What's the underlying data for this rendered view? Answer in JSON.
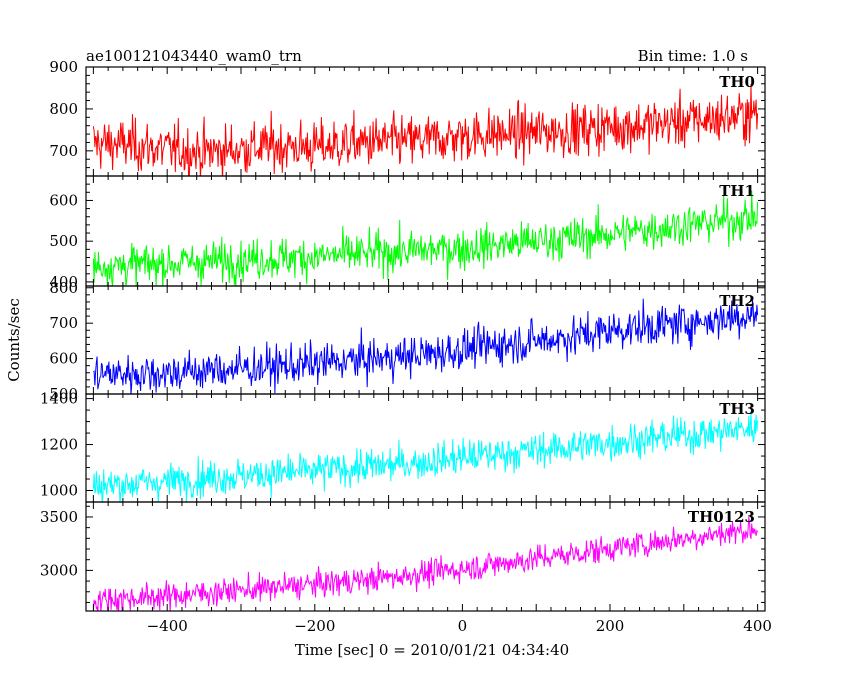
{
  "chart_data": {
    "type": "line",
    "title": "ae100121043440_wam0_trn",
    "subtitle": "Bin time: 1.0 s",
    "xlabel": "Time [sec] 0 = 2010/01/21 04:34:40",
    "ylabel": "Counts/sec",
    "xlim": [
      -510,
      410
    ],
    "xticks": [
      "-400",
      "-200",
      "0",
      "200",
      "400"
    ],
    "grid": false,
    "panels": [
      {
        "name": "TH0",
        "color": "#ff0000",
        "ylim": [
          640,
          900
        ],
        "yticks": [
          "700",
          "800",
          "900"
        ],
        "x": [
          -500,
          -450,
          -400,
          -350,
          -300,
          -250,
          -200,
          -150,
          -100,
          -50,
          0,
          50,
          100,
          150,
          200,
          250,
          300,
          350,
          400
        ],
        "y": [
          718,
          714,
          703,
          697,
          705,
          712,
          708,
          718,
          722,
          725,
          735,
          740,
          745,
          750,
          758,
          762,
          770,
          778,
          790
        ]
      },
      {
        "name": "TH1",
        "color": "#00ff00",
        "ylim": [
          390,
          660
        ],
        "yticks": [
          "400",
          "500",
          "600"
        ],
        "x": [
          -500,
          -450,
          -400,
          -350,
          -300,
          -250,
          -200,
          -150,
          -100,
          -50,
          0,
          50,
          100,
          150,
          200,
          250,
          300,
          350,
          400
        ],
        "y": [
          438,
          442,
          445,
          450,
          455,
          458,
          462,
          468,
          472,
          478,
          482,
          492,
          500,
          508,
          518,
          528,
          540,
          548,
          560
        ]
      },
      {
        "name": "TH2",
        "color": "#0000ff",
        "ylim": [
          500,
          805
        ],
        "yticks": [
          "500",
          "600",
          "700",
          "800"
        ],
        "x": [
          -500,
          -450,
          -400,
          -350,
          -300,
          -250,
          -200,
          -150,
          -100,
          -50,
          0,
          50,
          100,
          150,
          200,
          250,
          300,
          350,
          400
        ],
        "y": [
          555,
          558,
          560,
          565,
          572,
          578,
          585,
          595,
          602,
          612,
          625,
          640,
          650,
          662,
          680,
          690,
          700,
          712,
          728
        ]
      },
      {
        "name": "TH3",
        "color": "#00ffff",
        "ylim": [
          950,
          1420
        ],
        "yticks": [
          "1000",
          "1200",
          "1400"
        ],
        "x": [
          -500,
          -450,
          -400,
          -350,
          -300,
          -250,
          -200,
          -150,
          -100,
          -50,
          0,
          50,
          100,
          150,
          200,
          250,
          300,
          350,
          400
        ],
        "y": [
          1020,
          1030,
          1040,
          1055,
          1065,
          1075,
          1085,
          1098,
          1110,
          1125,
          1145,
          1160,
          1175,
          1190,
          1210,
          1225,
          1240,
          1255,
          1275
        ]
      },
      {
        "name": "TH0123",
        "color": "#ff00ff",
        "ylim": [
          2620,
          3640
        ],
        "yticks": [
          "3000",
          "3500"
        ],
        "x": [
          -500,
          -450,
          -400,
          -350,
          -300,
          -250,
          -200,
          -150,
          -100,
          -50,
          0,
          50,
          100,
          150,
          200,
          250,
          300,
          350,
          400
        ],
        "y": [
          2720,
          2740,
          2760,
          2790,
          2815,
          2840,
          2870,
          2900,
          2935,
          2975,
          3015,
          3065,
          3110,
          3155,
          3205,
          3250,
          3300,
          3345,
          3390
        ]
      }
    ]
  }
}
